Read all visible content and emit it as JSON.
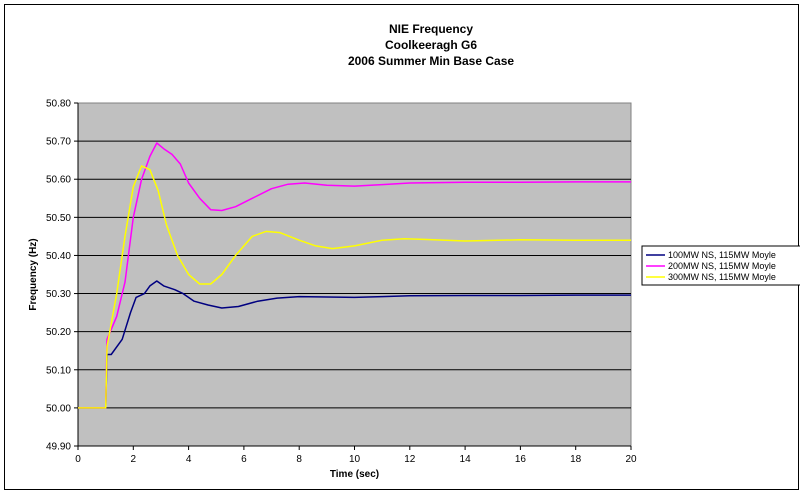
{
  "chart_data": {
    "type": "line",
    "title": [
      "NIE Frequency",
      "Coolkeeragh G6",
      "2006 Summer Min Base Case"
    ],
    "xlabel": "Time (sec)",
    "ylabel": "Frequency (Hz)",
    "xlim": [
      0,
      20
    ],
    "ylim": [
      49.9,
      50.8
    ],
    "x_ticks": [
      0,
      2,
      4,
      6,
      8,
      10,
      12,
      14,
      16,
      18,
      20
    ],
    "y_ticks": [
      49.9,
      50.0,
      50.1,
      50.2,
      50.3,
      50.4,
      50.5,
      50.6,
      50.7,
      50.8
    ],
    "x_tick_labels": [
      "0",
      "2",
      "4",
      "6",
      "8",
      "10",
      "12",
      "14",
      "16",
      "18",
      "20"
    ],
    "y_tick_labels": [
      "49.90",
      "50.00",
      "50.10",
      "50.20",
      "50.30",
      "50.40",
      "50.50",
      "50.60",
      "50.70",
      "50.80"
    ],
    "grid": "horizontal",
    "plot_background": "#c0c0c0",
    "legend_position": "right",
    "series": [
      {
        "name": "100MW NS, 115MW Moyle",
        "color": "#000080",
        "points": [
          [
            0,
            50.0
          ],
          [
            1.0,
            50.0
          ],
          [
            1.05,
            50.14
          ],
          [
            1.2,
            50.14
          ],
          [
            1.6,
            50.18
          ],
          [
            1.9,
            50.25
          ],
          [
            2.1,
            50.29
          ],
          [
            2.4,
            50.3
          ],
          [
            2.6,
            50.32
          ],
          [
            2.85,
            50.333
          ],
          [
            3.1,
            50.32
          ],
          [
            3.5,
            50.31
          ],
          [
            3.8,
            50.3
          ],
          [
            4.2,
            50.28
          ],
          [
            4.7,
            50.27
          ],
          [
            5.2,
            50.262
          ],
          [
            5.8,
            50.266
          ],
          [
            6.5,
            50.28
          ],
          [
            7.2,
            50.288
          ],
          [
            8.0,
            50.292
          ],
          [
            9.0,
            50.291
          ],
          [
            10.0,
            50.29
          ],
          [
            11.0,
            50.292
          ],
          [
            12.0,
            50.294
          ],
          [
            14.0,
            50.295
          ],
          [
            16.0,
            50.295
          ],
          [
            18.0,
            50.296
          ],
          [
            20.0,
            50.296
          ]
        ]
      },
      {
        "name": "200MW NS, 115MW Moyle",
        "color": "#ff00ff",
        "points": [
          [
            0,
            50.0
          ],
          [
            1.0,
            50.0
          ],
          [
            1.05,
            50.18
          ],
          [
            1.4,
            50.24
          ],
          [
            1.7,
            50.33
          ],
          [
            2.0,
            50.5
          ],
          [
            2.3,
            50.6
          ],
          [
            2.6,
            50.66
          ],
          [
            2.85,
            50.695
          ],
          [
            3.1,
            50.68
          ],
          [
            3.4,
            50.665
          ],
          [
            3.7,
            50.64
          ],
          [
            4.0,
            50.59
          ],
          [
            4.4,
            50.55
          ],
          [
            4.8,
            50.52
          ],
          [
            5.2,
            50.518
          ],
          [
            5.7,
            50.528
          ],
          [
            6.3,
            50.55
          ],
          [
            7.0,
            50.575
          ],
          [
            7.6,
            50.587
          ],
          [
            8.2,
            50.59
          ],
          [
            9.0,
            50.584
          ],
          [
            10.0,
            50.582
          ],
          [
            11.0,
            50.586
          ],
          [
            12.0,
            50.59
          ],
          [
            14.0,
            50.592
          ],
          [
            16.0,
            50.592
          ],
          [
            18.0,
            50.593
          ],
          [
            20.0,
            50.593
          ]
        ]
      },
      {
        "name": "300MW NS, 115MW Moyle",
        "color": "#ffff00",
        "points": [
          [
            0,
            50.0
          ],
          [
            1.0,
            50.0
          ],
          [
            1.05,
            50.16
          ],
          [
            1.4,
            50.3
          ],
          [
            1.7,
            50.45
          ],
          [
            2.0,
            50.58
          ],
          [
            2.3,
            50.635
          ],
          [
            2.6,
            50.625
          ],
          [
            2.9,
            50.57
          ],
          [
            3.2,
            50.48
          ],
          [
            3.6,
            50.4
          ],
          [
            4.0,
            50.35
          ],
          [
            4.4,
            50.325
          ],
          [
            4.8,
            50.325
          ],
          [
            5.2,
            50.35
          ],
          [
            5.7,
            50.4
          ],
          [
            6.3,
            50.45
          ],
          [
            6.8,
            50.463
          ],
          [
            7.3,
            50.46
          ],
          [
            8.0,
            50.44
          ],
          [
            8.6,
            50.425
          ],
          [
            9.2,
            50.418
          ],
          [
            10.0,
            50.425
          ],
          [
            11.0,
            50.44
          ],
          [
            11.8,
            50.444
          ],
          [
            12.5,
            50.442
          ],
          [
            14.0,
            50.438
          ],
          [
            16.0,
            50.441
          ],
          [
            18.0,
            50.44
          ],
          [
            20.0,
            50.44
          ]
        ]
      }
    ]
  }
}
